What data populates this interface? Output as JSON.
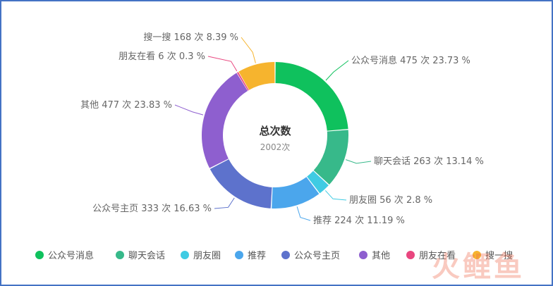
{
  "chart_data": {
    "type": "pie",
    "subtype": "donut",
    "center_title": "总次数",
    "center_subtitle": "2002次",
    "total": 2002,
    "label_unit": "次",
    "slices": [
      {
        "name": "公众号消息",
        "value": 475,
        "percent": "23.73",
        "color": "#0fc15d",
        "label": "公众号消息 475 次 23.73 %"
      },
      {
        "name": "聊天会话",
        "value": 263,
        "percent": "13.14",
        "color": "#37b98a",
        "label": "聊天会话 263 次 13.14 %"
      },
      {
        "name": "朋友圈",
        "value": 56,
        "percent": "2.8",
        "color": "#3fcbe3",
        "label": "朋友圈 56 次 2.8 %"
      },
      {
        "name": "推荐",
        "value": 224,
        "percent": "11.19",
        "color": "#4ba6ec",
        "label": "推荐 224 次 11.19 %"
      },
      {
        "name": "公众号主页",
        "value": 333,
        "percent": "16.63",
        "color": "#5d72cc",
        "label": "公众号主页 333 次 16.63 %"
      },
      {
        "name": "其他",
        "value": 477,
        "percent": "23.83",
        "color": "#8e5fcf",
        "label": "其他 477 次 23.83 %"
      },
      {
        "name": "朋友在看",
        "value": 6,
        "percent": "0.3",
        "color": "#e9467f",
        "label": "朋友在看 6 次 0.3 %"
      },
      {
        "name": "搜一搜",
        "value": 168,
        "percent": "8.39",
        "color": "#f6b42e",
        "label": "搜一搜 168 次 8.39 %"
      }
    ],
    "legend_position": "bottom"
  },
  "watermark": "火鲤鱼"
}
